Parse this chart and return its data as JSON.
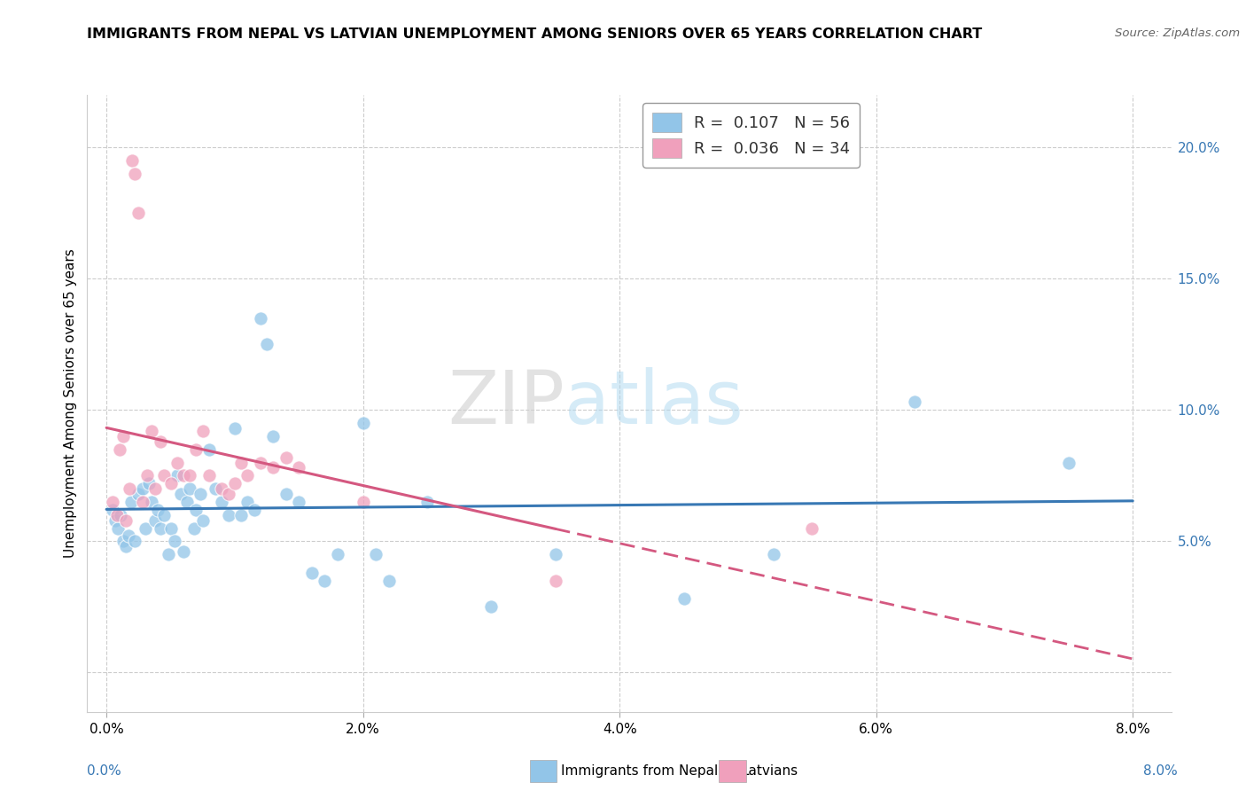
{
  "title": "IMMIGRANTS FROM NEPAL VS LATVIAN UNEMPLOYMENT AMONG SENIORS OVER 65 YEARS CORRELATION CHART",
  "source": "Source: ZipAtlas.com",
  "ylabel": "Unemployment Among Seniors over 65 years",
  "x_tick_labels": [
    "0.0%",
    "2.0%",
    "4.0%",
    "6.0%",
    "8.0%"
  ],
  "x_tick_vals": [
    0.0,
    2.0,
    4.0,
    6.0,
    8.0
  ],
  "y_tick_labels_right": [
    "5.0%",
    "10.0%",
    "15.0%",
    "20.0%"
  ],
  "y_tick_vals_right": [
    5.0,
    10.0,
    15.0,
    20.0
  ],
  "xlim": [
    -0.15,
    8.3
  ],
  "ylim": [
    -1.5,
    22.0
  ],
  "legend_r_values": [
    "0.107",
    "0.036"
  ],
  "legend_n_values": [
    "56",
    "34"
  ],
  "blue_color": "#92c5e8",
  "pink_color": "#f0a0bc",
  "blue_line_color": "#3878b4",
  "pink_line_color": "#d45880",
  "watermark_zip": "ZIP",
  "watermark_atlas": "atlas",
  "nepal_x": [
    0.05,
    0.07,
    0.09,
    0.11,
    0.13,
    0.15,
    0.17,
    0.19,
    0.22,
    0.25,
    0.28,
    0.3,
    0.33,
    0.35,
    0.38,
    0.4,
    0.42,
    0.45,
    0.48,
    0.5,
    0.53,
    0.55,
    0.58,
    0.6,
    0.63,
    0.65,
    0.68,
    0.7,
    0.73,
    0.75,
    0.8,
    0.85,
    0.9,
    0.95,
    1.0,
    1.05,
    1.1,
    1.15,
    1.2,
    1.25,
    1.3,
    1.4,
    1.5,
    1.6,
    1.7,
    1.8,
    2.0,
    2.1,
    2.2,
    2.5,
    3.0,
    3.5,
    4.5,
    5.2,
    6.3,
    7.5
  ],
  "nepal_y": [
    6.2,
    5.8,
    5.5,
    6.0,
    5.0,
    4.8,
    5.2,
    6.5,
    5.0,
    6.8,
    7.0,
    5.5,
    7.2,
    6.5,
    5.8,
    6.2,
    5.5,
    6.0,
    4.5,
    5.5,
    5.0,
    7.5,
    6.8,
    4.6,
    6.5,
    7.0,
    5.5,
    6.2,
    6.8,
    5.8,
    8.5,
    7.0,
    6.5,
    6.0,
    9.3,
    6.0,
    6.5,
    6.2,
    13.5,
    12.5,
    9.0,
    6.8,
    6.5,
    3.8,
    3.5,
    4.5,
    9.5,
    4.5,
    3.5,
    6.5,
    2.5,
    4.5,
    2.8,
    4.5,
    10.3,
    8.0
  ],
  "latvian_x": [
    0.05,
    0.08,
    0.1,
    0.13,
    0.15,
    0.18,
    0.2,
    0.22,
    0.25,
    0.28,
    0.32,
    0.35,
    0.38,
    0.42,
    0.45,
    0.5,
    0.55,
    0.6,
    0.65,
    0.7,
    0.75,
    0.8,
    0.9,
    0.95,
    1.0,
    1.05,
    1.1,
    1.2,
    1.3,
    1.4,
    1.5,
    2.0,
    3.5,
    5.5
  ],
  "latvian_y": [
    6.5,
    6.0,
    8.5,
    9.0,
    5.8,
    7.0,
    19.5,
    19.0,
    17.5,
    6.5,
    7.5,
    9.2,
    7.0,
    8.8,
    7.5,
    7.2,
    8.0,
    7.5,
    7.5,
    8.5,
    9.2,
    7.5,
    7.0,
    6.8,
    7.2,
    8.0,
    7.5,
    8.0,
    7.8,
    8.2,
    7.8,
    6.5,
    3.5,
    5.5
  ]
}
